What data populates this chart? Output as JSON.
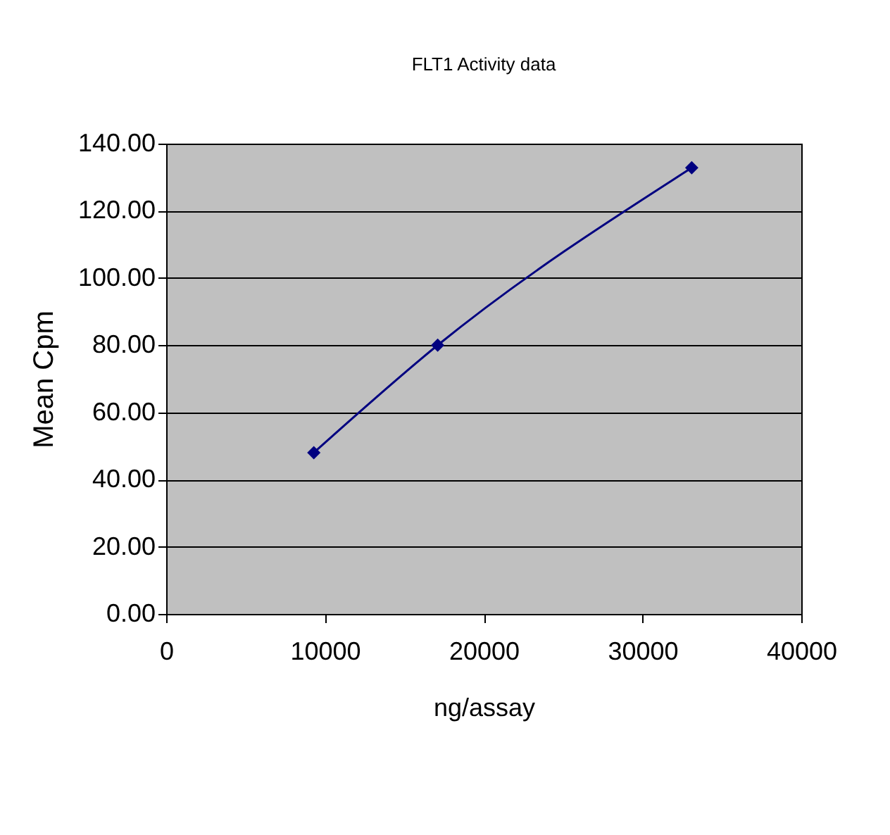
{
  "chart_data": {
    "type": "line",
    "title": "FLT1 Activity data",
    "xlabel": "ng/assay",
    "ylabel": "Mean Cpm",
    "x": [
      9300,
      17100,
      33100
    ],
    "series": [
      {
        "color": "#000080",
        "values": [
          48.0,
          80.0,
          132.8
        ]
      }
    ],
    "xlim": [
      0,
      40000
    ],
    "xticks": [
      0,
      10000,
      20000,
      30000,
      40000
    ],
    "ylim": [
      0,
      140
    ],
    "yticks": [
      {
        "value": 0,
        "label": "0.00"
      },
      {
        "value": 20,
        "label": "20.00"
      },
      {
        "value": 40,
        "label": "40.00"
      },
      {
        "value": 60,
        "label": "60.00"
      },
      {
        "value": 80,
        "label": "80.00"
      },
      {
        "value": 100,
        "label": "100.00"
      },
      {
        "value": 120,
        "label": "120.00"
      },
      {
        "value": 140,
        "label": "140.00"
      }
    ],
    "grid": "y",
    "marker": "diamond",
    "line_style": "solid"
  }
}
